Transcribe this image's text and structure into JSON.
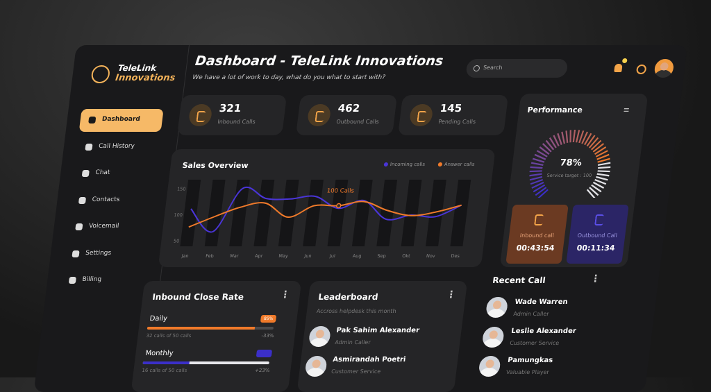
{
  "brand": {
    "name": "TeleLink",
    "tagline": "Innovations"
  },
  "nav": {
    "active": 0,
    "items": [
      "Dashboard",
      "Call History",
      "Chat",
      "Contacts",
      "Voicemail",
      "Settings",
      "Billing"
    ]
  },
  "header": {
    "title": "Dashboard - TeleLink Innovations",
    "subtitle": "We have a lot of work to day, what do you what to start with?",
    "search_placeholder": "Search"
  },
  "stats": [
    {
      "value": 321,
      "label": "Inbound Calls"
    },
    {
      "value": 462,
      "label": "Outbound Calls"
    },
    {
      "value": 145,
      "label": "Pending Calls"
    }
  ],
  "chart_data": [
    {
      "type": "line",
      "title": "Sales Overview",
      "categories": [
        "Jan",
        "Feb",
        "Mar",
        "Apr",
        "May",
        "Jun",
        "Jul",
        "Aug",
        "Sep",
        "Okt",
        "Nov",
        "Des"
      ],
      "series": [
        {
          "name": "Incoming calls",
          "color": "#4a35d8",
          "values": [
            112,
            68,
            151,
            132,
            131,
            136,
            113,
            128,
            92,
            100,
            97,
            119
          ]
        },
        {
          "name": "Answer calls",
          "color": "#f07a2a",
          "values": [
            77,
            97,
            115,
            123,
            96,
            118,
            118,
            126,
            109,
            99,
            106,
            119
          ]
        }
      ],
      "ylim": [
        40,
        160
      ],
      "yticks": [
        50,
        100,
        150
      ],
      "annotations": [
        {
          "text": "100 Calls",
          "x": "Jul"
        }
      ]
    },
    {
      "type": "gauge",
      "title": "Performance",
      "values": [
        78
      ],
      "value_labels": [
        "78%"
      ],
      "subtitle": "Service target : 100",
      "ylim": [
        0,
        100
      ]
    }
  ],
  "performance": {
    "inbound": {
      "label": "Inbound call",
      "time": "00:43:54",
      "color": "#6b3a22"
    },
    "outbound": {
      "label": "Outbound Call",
      "time": "00:11:34",
      "color": "#2b2566"
    }
  },
  "close_rate": {
    "title": "Inbound Close Rate",
    "items": [
      {
        "label": "Daily",
        "badge": "85%",
        "progress": 85,
        "color": "#f07a2a",
        "track": "#4a4a4c",
        "detail": "32 calls of 50 calls",
        "change": "-33%"
      },
      {
        "label": "Monthly",
        "progress": 37,
        "color": "#3b2fc9",
        "track": "#e8e8ec",
        "detail": "16 calls of 50 calls",
        "change": "+23%"
      }
    ]
  },
  "leaderboard": {
    "title": "Leaderboard",
    "subtitle": "Accross helpdesk this month",
    "people": [
      {
        "name": "Pak Sahim Alexander",
        "role": "Admin Caller"
      },
      {
        "name": "Asmirandah Poetri",
        "role": "Customer Service"
      }
    ]
  },
  "recent_calls": {
    "title": "Recent Call",
    "people": [
      {
        "name": "Wade Warren",
        "role": "Admin Caller"
      },
      {
        "name": "Leslie Alexander",
        "role": "Customer Service"
      },
      {
        "name": "Pamungkas",
        "role": "Valuable Player"
      }
    ]
  }
}
